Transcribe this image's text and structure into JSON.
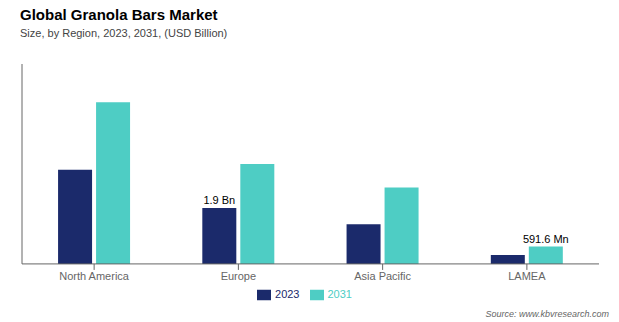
{
  "chart_data": {
    "type": "bar",
    "title": "Global Granola Bars Market",
    "subtitle": "Size, by Region, 2023, 2031, (USD Billion)",
    "source": "Source: www.kbvresearch.com",
    "categories": [
      "North America",
      "Europe",
      "Asia Pacific",
      "LAMEA"
    ],
    "series": [
      {
        "name": "2023",
        "color": "#1b2a6b",
        "values": [
          3.2,
          1.9,
          1.35,
          0.3
        ]
      },
      {
        "name": "2031",
        "color": "#4ecdc4",
        "values": [
          5.5,
          3.4,
          2.6,
          0.5916
        ]
      }
    ],
    "annotations": [
      {
        "text": "1.9 Bn",
        "series": "2023",
        "category": "Europe"
      },
      {
        "text": "591.6 Mn",
        "series": "2031",
        "category": "LAMEA"
      }
    ],
    "ylim": [
      0,
      6.8
    ],
    "grid": false,
    "legend": "bottom",
    "tick_labels": "x"
  }
}
